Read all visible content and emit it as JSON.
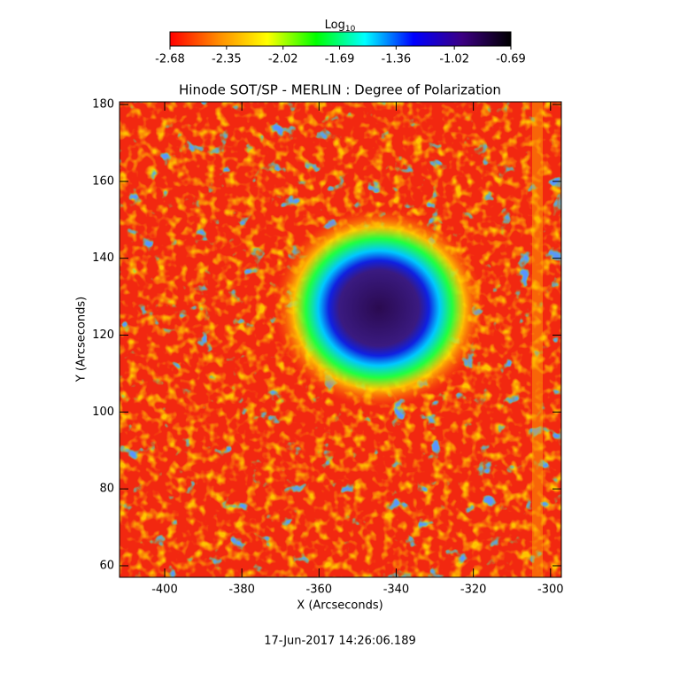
{
  "chart_data": {
    "type": "image",
    "title": "Hinode SOT/SP - MERLIN : Degree of Polarization",
    "xlabel": "X (Arcseconds)",
    "ylabel": "Y (Arcseconds)",
    "footer": "17-Jun-2017 14:26:06.189",
    "xlim": [
      -411.7,
      -297.2
    ],
    "xticks": [
      -400,
      -380,
      -360,
      -340,
      -320,
      -300
    ],
    "ylim": [
      57.0,
      180.7
    ],
    "yticks": [
      60,
      80,
      100,
      120,
      140,
      160,
      180
    ],
    "grid": false,
    "colorbar": {
      "label": "Log",
      "label_subscript": "10",
      "lim": [
        -2.68,
        -0.69
      ],
      "ticks": [
        -2.68,
        -2.35,
        -2.02,
        -1.69,
        -1.36,
        -1.02,
        -0.69
      ],
      "colormap": [
        "#ff0000",
        "#ff8c00",
        "#ffff00",
        "#00ff00",
        "#00ffff",
        "#0000ff",
        "#3c0082",
        "#000000"
      ]
    }
  }
}
